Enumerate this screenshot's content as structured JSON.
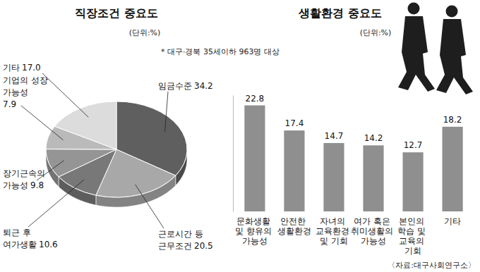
{
  "chart_data": [
    {
      "type": "pie",
      "title": "직장조건 중요도",
      "subtitle": "(단위:%)",
      "annotations": [
        "* 대구·경북 35세이하 963명 대상"
      ],
      "categories": [
        "임금수준",
        "근로시간 등 근무조건",
        "퇴근 후 여가생활",
        "장기근속의 가능성",
        "기업의 성장 가능성",
        "기타"
      ],
      "values": [
        34.2,
        20.5,
        10.6,
        9.8,
        7.9,
        17.0
      ],
      "value_labels": [
        "34.2",
        "20.5",
        "10.6",
        "9.8",
        "7.9",
        "17.0"
      ],
      "colors": [
        "#5f5f5f",
        "#a8a8a8",
        "#787878",
        "#959595",
        "#bababa",
        "#dcdcdc"
      ],
      "data_labels": true
    },
    {
      "type": "bar",
      "title": "생활환경 중요도",
      "subtitle": "(단위:%)",
      "annotations": [
        "〈자료:대구사회연구소〉"
      ],
      "categories": [
        "문화생활 및 향유의 가능성",
        "안전한 생활환경",
        "자녀의 교육환경 및 기회",
        "여가 혹은 취미생활의 가능성",
        "본인의 학습 및 교육의 기회",
        "기타"
      ],
      "values": [
        22.8,
        17.4,
        14.7,
        14.2,
        12.7,
        18.2
      ],
      "color": "#8f8f8f",
      "ylim": [
        0,
        25
      ],
      "yticks": [],
      "tick_labels": "x",
      "data_labels": true
    }
  ]
}
